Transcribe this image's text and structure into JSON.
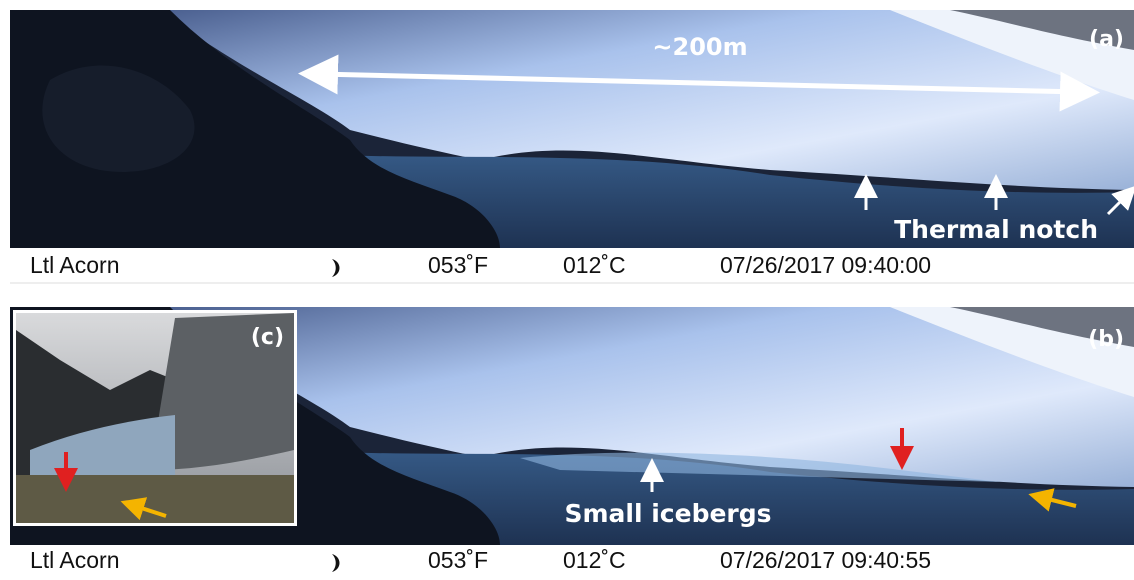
{
  "panels": [
    {
      "label": "(a)",
      "annotations": {
        "distance": "~200m",
        "feature": "Thermal notch"
      },
      "footer": {
        "camera": "Ltl Acorn",
        "temperature_f": "053˚F",
        "temperature_c": "012˚C",
        "timestamp": "07/26/2017 09:40:00"
      }
    },
    {
      "label": "(b)",
      "annotations": {
        "feature": "Small icebergs"
      },
      "inset": {
        "label": "(c)"
      },
      "footer": {
        "camera": "Ltl Acorn",
        "temperature_f": "053˚F",
        "temperature_c": "012˚C",
        "timestamp": "07/26/2017 09:40:55"
      }
    }
  ]
}
